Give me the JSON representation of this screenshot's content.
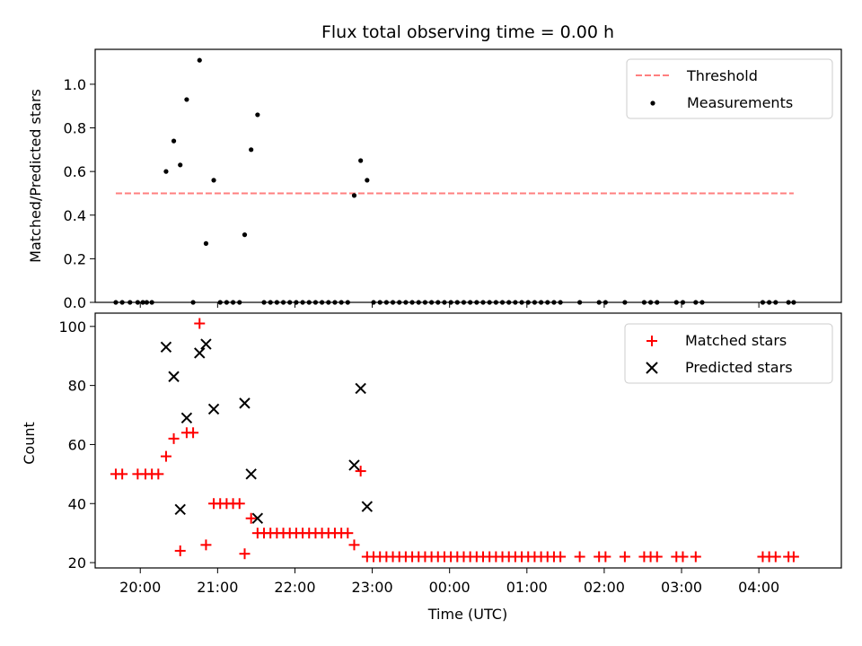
{
  "chart_data": [
    {
      "type": "scatter",
      "title": "Flux total observing time = 0.00 h",
      "xlabel": "",
      "ylabel": "Matched/Predicted stars",
      "xlim": [
        "19:25",
        "29:04"
      ],
      "ylim": [
        0,
        1.16
      ],
      "yticks": [
        "0.0",
        "0.2",
        "0.4",
        "0.6",
        "0.8",
        "1.0"
      ],
      "ytick_values": [
        0,
        0.2,
        0.4,
        0.6,
        0.8,
        1.0
      ],
      "xticks_values": [
        "20:00",
        "21:00",
        "22:00",
        "23:00",
        "24:00",
        "25:00",
        "26:00",
        "27:00",
        "28:00"
      ],
      "threshold": {
        "name": "Threshold",
        "value": 0.5,
        "x_start": "19:41",
        "x_end": "28:27",
        "color": "#ff7f7f"
      },
      "series": [
        {
          "name": "Measurements",
          "color": "#000000",
          "points": [
            [
              "19:41",
              0
            ],
            [
              "19:46",
              0
            ],
            [
              "19:52",
              0
            ],
            [
              "19:58",
              0
            ],
            [
              "20:02",
              0
            ],
            [
              "20:05",
              0
            ],
            [
              "20:09",
              0
            ],
            [
              "20:20",
              0.6
            ],
            [
              "20:26",
              0.74
            ],
            [
              "20:31",
              0.63
            ],
            [
              "20:36",
              0.93
            ],
            [
              "20:41",
              0
            ],
            [
              "20:46",
              1.11
            ],
            [
              "20:51",
              0.27
            ],
            [
              "20:57",
              0.56
            ],
            [
              "21:02",
              0
            ],
            [
              "21:07",
              0
            ],
            [
              "21:12",
              0
            ],
            [
              "21:17",
              0
            ],
            [
              "21:21",
              0.31
            ],
            [
              "21:26",
              0.7
            ],
            [
              "21:31",
              0.86
            ],
            [
              "21:36",
              0
            ],
            [
              "21:41",
              0
            ],
            [
              "21:46",
              0
            ],
            [
              "21:51",
              0
            ],
            [
              "21:56",
              0
            ],
            [
              "22:01",
              0
            ],
            [
              "22:06",
              0
            ],
            [
              "22:11",
              0
            ],
            [
              "22:16",
              0
            ],
            [
              "22:21",
              0
            ],
            [
              "22:26",
              0
            ],
            [
              "22:31",
              0
            ],
            [
              "22:36",
              0
            ],
            [
              "22:41",
              0
            ],
            [
              "22:46",
              0.49
            ],
            [
              "22:51",
              0.65
            ],
            [
              "22:56",
              0.56
            ],
            [
              "23:01",
              0
            ],
            [
              "23:06",
              0
            ],
            [
              "23:11",
              0
            ],
            [
              "23:16",
              0
            ],
            [
              "23:21",
              0
            ],
            [
              "23:26",
              0
            ],
            [
              "23:31",
              0
            ],
            [
              "23:36",
              0
            ],
            [
              "23:41",
              0
            ],
            [
              "23:46",
              0
            ],
            [
              "23:51",
              0
            ],
            [
              "23:56",
              0
            ],
            [
              "24:01",
              0
            ],
            [
              "24:06",
              0
            ],
            [
              "24:11",
              0
            ],
            [
              "24:16",
              0
            ],
            [
              "24:21",
              0
            ],
            [
              "24:26",
              0
            ],
            [
              "24:31",
              0
            ],
            [
              "24:36",
              0
            ],
            [
              "24:41",
              0
            ],
            [
              "24:46",
              0
            ],
            [
              "24:51",
              0
            ],
            [
              "24:56",
              0
            ],
            [
              "25:01",
              0
            ],
            [
              "25:06",
              0
            ],
            [
              "25:11",
              0
            ],
            [
              "25:16",
              0
            ],
            [
              "25:21",
              0
            ],
            [
              "25:26",
              0
            ],
            [
              "25:41",
              0
            ],
            [
              "25:56",
              0
            ],
            [
              "26:01",
              0
            ],
            [
              "26:16",
              0
            ],
            [
              "26:31",
              0
            ],
            [
              "26:36",
              0
            ],
            [
              "26:41",
              0
            ],
            [
              "26:56",
              0
            ],
            [
              "27:01",
              0
            ],
            [
              "27:11",
              0
            ],
            [
              "27:16",
              0
            ],
            [
              "28:03",
              0
            ],
            [
              "28:08",
              0
            ],
            [
              "28:13",
              0
            ],
            [
              "28:23",
              0
            ],
            [
              "28:27",
              0
            ]
          ]
        }
      ],
      "legend": {
        "position": "top-right",
        "entries": [
          "Threshold",
          "Measurements"
        ]
      }
    },
    {
      "type": "scatter",
      "title": "",
      "xlabel": "Time (UTC)",
      "ylabel": "Count",
      "xlim": [
        "19:25",
        "29:04"
      ],
      "ylim": [
        18.2,
        104.5
      ],
      "yticks": [
        "20",
        "40",
        "60",
        "80",
        "100"
      ],
      "ytick_values": [
        20,
        40,
        60,
        80,
        100
      ],
      "xticks": [
        "20:00",
        "21:00",
        "22:00",
        "23:00",
        "00:00",
        "01:00",
        "02:00",
        "03:00",
        "04:00"
      ],
      "xticks_values": [
        "20:00",
        "21:00",
        "22:00",
        "23:00",
        "24:00",
        "25:00",
        "26:00",
        "27:00",
        "28:00"
      ],
      "series": [
        {
          "name": "Matched stars",
          "color": "#ff0000",
          "marker": "+",
          "points": [
            [
              "19:41",
              50
            ],
            [
              "19:46",
              50
            ],
            [
              "19:58",
              50
            ],
            [
              "20:04",
              50
            ],
            [
              "20:09",
              50
            ],
            [
              "20:14",
              50
            ],
            [
              "20:20",
              56
            ],
            [
              "20:26",
              62
            ],
            [
              "20:31",
              24
            ],
            [
              "20:36",
              64
            ],
            [
              "20:41",
              64
            ],
            [
              "20:46",
              101
            ],
            [
              "20:51",
              26
            ],
            [
              "20:57",
              40
            ],
            [
              "21:02",
              40
            ],
            [
              "21:07",
              40
            ],
            [
              "21:12",
              40
            ],
            [
              "21:17",
              40
            ],
            [
              "21:21",
              23
            ],
            [
              "21:26",
              35
            ],
            [
              "21:31",
              30
            ],
            [
              "21:36",
              30
            ],
            [
              "21:41",
              30
            ],
            [
              "21:46",
              30
            ],
            [
              "21:51",
              30
            ],
            [
              "21:56",
              30
            ],
            [
              "22:01",
              30
            ],
            [
              "22:06",
              30
            ],
            [
              "22:11",
              30
            ],
            [
              "22:16",
              30
            ],
            [
              "22:21",
              30
            ],
            [
              "22:26",
              30
            ],
            [
              "22:31",
              30
            ],
            [
              "22:36",
              30
            ],
            [
              "22:41",
              30
            ],
            [
              "22:46",
              26
            ],
            [
              "22:51",
              51
            ],
            [
              "22:56",
              22
            ],
            [
              "23:01",
              22
            ],
            [
              "23:06",
              22
            ],
            [
              "23:11",
              22
            ],
            [
              "23:16",
              22
            ],
            [
              "23:21",
              22
            ],
            [
              "23:26",
              22
            ],
            [
              "23:31",
              22
            ],
            [
              "23:36",
              22
            ],
            [
              "23:41",
              22
            ],
            [
              "23:46",
              22
            ],
            [
              "23:51",
              22
            ],
            [
              "23:56",
              22
            ],
            [
              "24:01",
              22
            ],
            [
              "24:06",
              22
            ],
            [
              "24:11",
              22
            ],
            [
              "24:16",
              22
            ],
            [
              "24:21",
              22
            ],
            [
              "24:26",
              22
            ],
            [
              "24:31",
              22
            ],
            [
              "24:36",
              22
            ],
            [
              "24:41",
              22
            ],
            [
              "24:46",
              22
            ],
            [
              "24:51",
              22
            ],
            [
              "24:56",
              22
            ],
            [
              "25:01",
              22
            ],
            [
              "25:06",
              22
            ],
            [
              "25:11",
              22
            ],
            [
              "25:16",
              22
            ],
            [
              "25:21",
              22
            ],
            [
              "25:26",
              22
            ],
            [
              "25:41",
              22
            ],
            [
              "25:56",
              22
            ],
            [
              "26:01",
              22
            ],
            [
              "26:16",
              22
            ],
            [
              "26:31",
              22
            ],
            [
              "26:36",
              22
            ],
            [
              "26:41",
              22
            ],
            [
              "26:56",
              22
            ],
            [
              "27:01",
              22
            ],
            [
              "27:11",
              22
            ],
            [
              "28:03",
              22
            ],
            [
              "28:08",
              22
            ],
            [
              "28:13",
              22
            ],
            [
              "28:23",
              22
            ],
            [
              "28:27",
              22
            ]
          ]
        },
        {
          "name": "Predicted stars",
          "color": "#000000",
          "marker": "x",
          "points": [
            [
              "20:20",
              93
            ],
            [
              "20:26",
              83
            ],
            [
              "20:31",
              38
            ],
            [
              "20:36",
              69
            ],
            [
              "20:46",
              91
            ],
            [
              "20:51",
              94
            ],
            [
              "20:57",
              72
            ],
            [
              "21:21",
              74
            ],
            [
              "21:26",
              50
            ],
            [
              "21:31",
              35
            ],
            [
              "22:46",
              53
            ],
            [
              "22:51",
              79
            ],
            [
              "22:56",
              39
            ]
          ]
        }
      ],
      "legend": {
        "position": "top-right",
        "entries": [
          "Matched stars",
          "Predicted stars"
        ]
      }
    }
  ]
}
